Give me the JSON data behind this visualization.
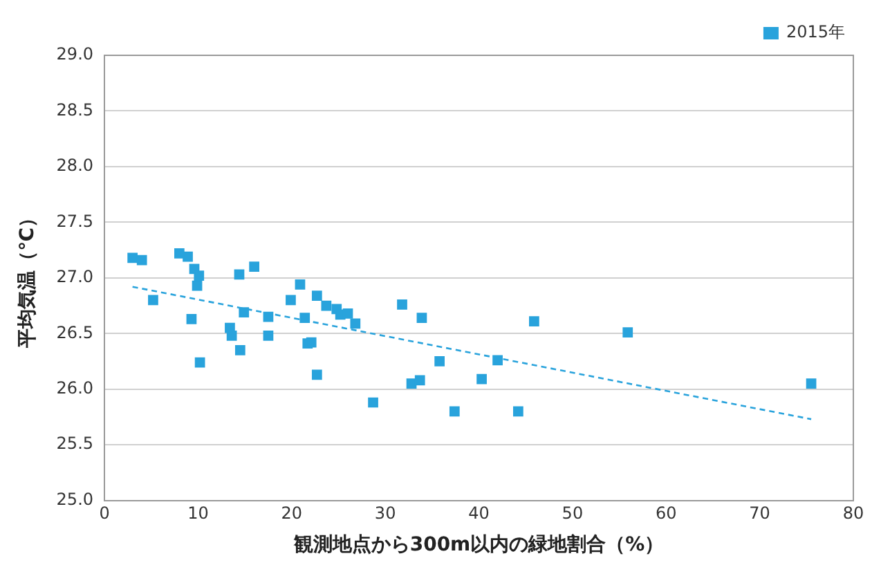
{
  "chart_data": {
    "type": "scatter",
    "xlabel": "観測地点から300m以内の緑地割合（%）",
    "ylabel": "平均気温（℃）",
    "legend": "top right",
    "grid": "y",
    "marker": "square",
    "xlim": [
      0,
      80
    ],
    "xticks": [
      0,
      10,
      20,
      30,
      40,
      50,
      60,
      70,
      80
    ],
    "ylim": [
      25,
      29
    ],
    "yticks": [
      {
        "value": 25,
        "label": "25.0"
      },
      {
        "value": 25.5,
        "label": "25.5"
      },
      {
        "value": 26,
        "label": "26.0"
      },
      {
        "value": 26.5,
        "label": "26.5"
      },
      {
        "value": 27,
        "label": "27.0"
      },
      {
        "value": 27.5,
        "label": "27.5"
      },
      {
        "value": 28,
        "label": "28.0"
      },
      {
        "value": 28.5,
        "label": "28.5"
      },
      {
        "value": 29,
        "label": "29.0"
      }
    ],
    "series": [
      {
        "name": "2015年",
        "type": "scatter",
        "color": "#29a3dc",
        "x": [
          3.0,
          4.0,
          5.2,
          8.0,
          8.9,
          9.6,
          10.1,
          9.9,
          9.3,
          10.2,
          13.4,
          13.6,
          14.4,
          14.9,
          14.5,
          16.0,
          17.5,
          17.5,
          19.9,
          20.9,
          21.4,
          21.7,
          22.1,
          22.7,
          22.7,
          23.7,
          24.8,
          25.2,
          26.0,
          26.8,
          28.7,
          31.8,
          33.9,
          32.8,
          33.7,
          35.8,
          37.4,
          40.3,
          42.0,
          44.2,
          45.9,
          55.9,
          75.5
        ],
        "values": [
          27.18,
          27.16,
          26.8,
          27.22,
          27.19,
          27.08,
          27.02,
          26.93,
          26.63,
          26.24,
          26.55,
          26.48,
          27.03,
          26.69,
          26.35,
          27.1,
          26.65,
          26.48,
          26.8,
          26.94,
          26.64,
          26.41,
          26.42,
          26.13,
          26.84,
          26.75,
          26.72,
          26.67,
          26.68,
          26.59,
          25.88,
          26.76,
          26.64,
          26.05,
          26.08,
          26.25,
          25.8,
          26.09,
          26.26,
          25.8,
          26.61,
          26.51,
          26.05
        ]
      },
      {
        "type": "line",
        "color": "#29a3dc",
        "line_style": "dashed",
        "marker": "none",
        "x": [
          3.0,
          75.5
        ],
        "values": [
          26.92,
          25.73
        ]
      }
    ]
  }
}
